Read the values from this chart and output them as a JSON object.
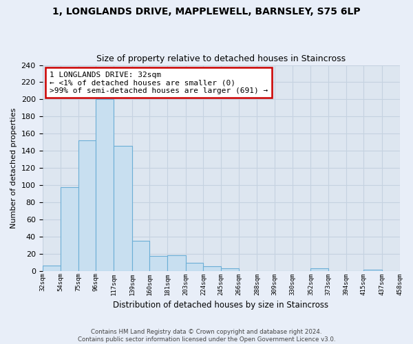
{
  "title": "1, LONGLANDS DRIVE, MAPPLEWELL, BARNSLEY, S75 6LP",
  "subtitle": "Size of property relative to detached houses in Staincross",
  "xlabel": "Distribution of detached houses by size in Staincross",
  "ylabel": "Number of detached properties",
  "bar_edges": [
    32,
    54,
    75,
    96,
    117,
    139,
    160,
    181,
    203,
    224,
    245,
    266,
    288,
    309,
    330,
    352,
    373,
    394,
    415,
    437,
    458
  ],
  "bar_heights": [
    6,
    98,
    152,
    200,
    146,
    35,
    17,
    18,
    9,
    5,
    3,
    0,
    0,
    0,
    0,
    3,
    0,
    0,
    1,
    0
  ],
  "bar_color": "#c8dff0",
  "bar_edge_color": "#6baed6",
  "annotation_line1": "1 LONGLANDS DRIVE: 32sqm",
  "annotation_line2": "← <1% of detached houses are smaller (0)",
  "annotation_line3": ">99% of semi-detached houses are larger (691) →",
  "annotation_box_color": "#ffffff",
  "annotation_box_edge_color": "#cc0000",
  "ylim": [
    0,
    240
  ],
  "yticks": [
    0,
    20,
    40,
    60,
    80,
    100,
    120,
    140,
    160,
    180,
    200,
    220,
    240
  ],
  "tick_labels": [
    "32sqm",
    "54sqm",
    "75sqm",
    "96sqm",
    "117sqm",
    "139sqm",
    "160sqm",
    "181sqm",
    "203sqm",
    "224sqm",
    "245sqm",
    "266sqm",
    "288sqm",
    "309sqm",
    "330sqm",
    "352sqm",
    "373sqm",
    "394sqm",
    "415sqm",
    "437sqm",
    "458sqm"
  ],
  "footer_line1": "Contains HM Land Registry data © Crown copyright and database right 2024.",
  "footer_line2": "Contains public sector information licensed under the Open Government Licence v3.0.",
  "bg_color": "#e8eef8",
  "plot_bg_color": "#dde6f0",
  "grid_color": "#c5d2e0"
}
